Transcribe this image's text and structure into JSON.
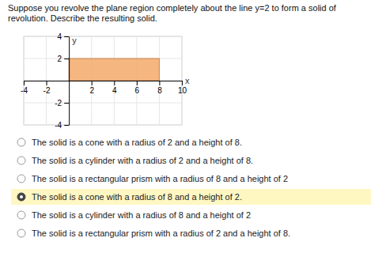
{
  "chart_data": {
    "type": "region",
    "title": "Suppose you revolve the plane region completely about the line y=2 to form a solid of revolution. Describe the resulting solid.",
    "xlabel": "x",
    "ylabel": "y",
    "x": [
      0,
      8
    ],
    "y": [
      0,
      2
    ],
    "color": "#f5a96a",
    "xlim": [
      -4,
      10
    ],
    "ylim": [
      -4,
      4
    ],
    "xticks": [
      -4,
      -2,
      2,
      4,
      6,
      8,
      10
    ],
    "yticks": [
      -4,
      -2,
      2,
      4
    ],
    "grid": true,
    "annotations": [
      {
        "text": "The solid is a cone with a radius of 2 and a height of 8.",
        "selected": false
      },
      {
        "text": "The solid is a cylinder with a radius of 2 and a height of 8.",
        "selected": false
      },
      {
        "text": "The solid is a rectangular prism with a radius of 8 and a height of 2",
        "selected": false
      },
      {
        "text": "The solid is a cone with a radius of 8 and a height of 2.",
        "selected": true
      },
      {
        "text": "The solid is a cylinder with a radius of 8 and a height of 2",
        "selected": false
      },
      {
        "text": "The solid is a rectangular prism with a radius of 2 and a height of 8.",
        "selected": false
      }
    ]
  }
}
